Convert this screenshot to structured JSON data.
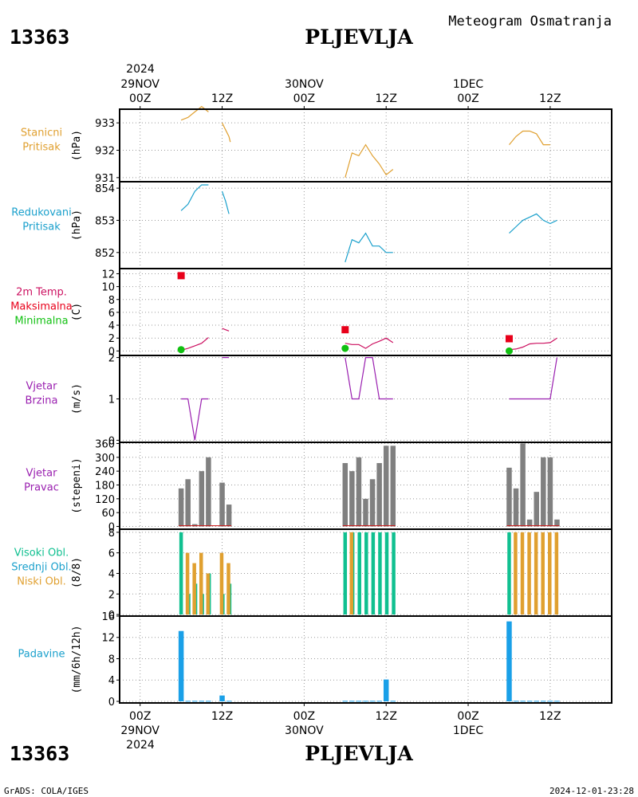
{
  "header": {
    "station_id": "13363",
    "station_name": "PLJEVLJA",
    "subtitle": "Meteogram Osmatranja"
  },
  "footer": {
    "station_id": "13363",
    "station_name": "PLJEVLJA",
    "credit": "GrADS: COLA/IGES",
    "timestamp": "2024-12-01-23:28"
  },
  "time_axis": {
    "year": "2024",
    "ticks": [
      {
        "hour": 0,
        "hour_label": "00Z",
        "date_label": "29NOV"
      },
      {
        "hour": 12,
        "hour_label": "12Z",
        "date_label": ""
      },
      {
        "hour": 24,
        "hour_label": "00Z",
        "date_label": "30NOV"
      },
      {
        "hour": 36,
        "hour_label": "12Z",
        "date_label": ""
      },
      {
        "hour": 48,
        "hour_label": "00Z",
        "date_label": "1DEC"
      },
      {
        "hour": 60,
        "hour_label": "12Z",
        "date_label": ""
      }
    ],
    "range_hours": [
      -3,
      69
    ]
  },
  "chart_data": [
    {
      "id": "station-pressure",
      "type": "line",
      "labels": [
        "Stanicni",
        "Pritisak"
      ],
      "label_color": "#e0a030",
      "ylabel": "(hPa)",
      "ylim": [
        930.85,
        933.5
      ],
      "yticks": [
        931,
        932,
        933
      ],
      "series": [
        {
          "color": "#e0a030",
          "segments": [
            [
              [
                6,
                933.1
              ],
              [
                7,
                933.2
              ],
              [
                8,
                933.4
              ],
              [
                9,
                933.6
              ],
              [
                10,
                933.4
              ]
            ],
            [
              [
                12,
                933.0
              ],
              [
                13,
                932.5
              ],
              [
                13.2,
                932.3
              ]
            ],
            [
              [
                30,
                931.0
              ],
              [
                31,
                931.9
              ],
              [
                32,
                931.8
              ],
              [
                33,
                932.2
              ],
              [
                34,
                931.8
              ],
              [
                35,
                931.5
              ],
              [
                36,
                931.1
              ],
              [
                37,
                931.3
              ]
            ],
            [
              [
                54,
                932.2
              ],
              [
                55,
                932.5
              ],
              [
                56,
                932.7
              ],
              [
                57,
                932.7
              ],
              [
                58,
                932.6
              ],
              [
                59,
                932.2
              ],
              [
                60,
                932.2
              ]
            ]
          ]
        }
      ]
    },
    {
      "id": "reduced-pressure",
      "type": "line",
      "labels": [
        "Redukovani",
        "Pritisak"
      ],
      "label_color": "#1aa0cc",
      "ylabel": "(hPa)",
      "ylim": [
        851.5,
        854.2
      ],
      "yticks": [
        852,
        853,
        854
      ],
      "series": [
        {
          "color": "#1aa0cc",
          "segments": [
            [
              [
                6,
                853.3
              ],
              [
                7,
                853.5
              ],
              [
                8,
                853.9
              ],
              [
                9,
                854.1
              ],
              [
                10,
                854.1
              ]
            ],
            [
              [
                12,
                853.9
              ],
              [
                12.5,
                853.6
              ],
              [
                13,
                853.2
              ]
            ],
            [
              [
                30,
                851.7
              ],
              [
                31,
                852.4
              ],
              [
                32,
                852.3
              ],
              [
                33,
                852.6
              ],
              [
                34,
                852.2
              ],
              [
                35,
                852.2
              ],
              [
                36,
                852.0
              ],
              [
                37,
                852.0
              ]
            ],
            [
              [
                54,
                852.6
              ],
              [
                55,
                852.8
              ],
              [
                56,
                853.0
              ],
              [
                57,
                853.1
              ],
              [
                58,
                853.2
              ],
              [
                59,
                853.0
              ],
              [
                60,
                852.9
              ],
              [
                61,
                853.0
              ]
            ]
          ]
        }
      ]
    },
    {
      "id": "temperature",
      "type": "line",
      "labels": [
        "2m Temp.",
        "Maksimalna",
        "Minimalna"
      ],
      "label_colors": [
        "#cc1060",
        "#e8001a",
        "#10c010"
      ],
      "ylabel": "(C)",
      "ylim": [
        -0.7,
        12.8
      ],
      "yticks": [
        0,
        2,
        4,
        6,
        8,
        10,
        12
      ],
      "series": [
        {
          "color": "#cc1060",
          "segments": [
            [
              [
                6,
                0.1
              ],
              [
                7,
                0.4
              ],
              [
                8,
                0.8
              ],
              [
                9,
                1.2
              ],
              [
                10,
                2.1
              ]
            ],
            [
              [
                12,
                3.5
              ],
              [
                13,
                3.1
              ]
            ],
            [
              [
                30,
                1.2
              ],
              [
                31,
                1.0
              ],
              [
                32,
                1.0
              ],
              [
                33,
                0.4
              ],
              [
                34,
                1.1
              ],
              [
                35,
                1.5
              ],
              [
                36,
                2.0
              ],
              [
                37,
                1.3
              ]
            ],
            [
              [
                54,
                0.2
              ],
              [
                55,
                0.3
              ],
              [
                56,
                0.6
              ],
              [
                57,
                1.1
              ],
              [
                58,
                1.2
              ],
              [
                59,
                1.2
              ],
              [
                60,
                1.3
              ],
              [
                61,
                2.0
              ]
            ]
          ]
        }
      ],
      "max_markers": [
        [
          6,
          11.7
        ],
        [
          30,
          3.3
        ],
        [
          54,
          1.9
        ]
      ],
      "min_markers": [
        [
          6,
          0.2
        ],
        [
          30,
          0.4
        ],
        [
          54,
          0.0
        ]
      ]
    },
    {
      "id": "wind-speed",
      "type": "line",
      "labels": [
        "Vjetar",
        "Brzina"
      ],
      "label_color": "#9a20b0",
      "ylabel": "(m/s)",
      "ylim": [
        -0.05,
        2.05
      ],
      "yticks": [
        0,
        1,
        2
      ],
      "series": [
        {
          "color": "#9a20b0",
          "segments": [
            [
              [
                6,
                1
              ],
              [
                7,
                1
              ],
              [
                8,
                0
              ],
              [
                9,
                1
              ],
              [
                10,
                1
              ]
            ],
            [
              [
                12,
                2
              ],
              [
                13,
                2
              ]
            ],
            [
              [
                30,
                2
              ],
              [
                31,
                1
              ],
              [
                32,
                1
              ],
              [
                33,
                2
              ],
              [
                34,
                2
              ],
              [
                35,
                1
              ],
              [
                36,
                1
              ],
              [
                37,
                1
              ]
            ],
            [
              [
                54,
                1
              ],
              [
                55,
                1
              ],
              [
                56,
                1
              ],
              [
                57,
                1
              ],
              [
                58,
                1
              ],
              [
                59,
                1
              ],
              [
                60,
                1
              ],
              [
                61,
                2
              ]
            ]
          ]
        }
      ]
    },
    {
      "id": "wind-direction",
      "type": "bar",
      "labels": [
        "Vjetar",
        "Pravac"
      ],
      "label_color": "#9a20b0",
      "ylabel": "(stepeni)",
      "ylim": [
        -12,
        365
      ],
      "yticks": [
        0,
        60,
        120,
        180,
        240,
        300,
        360
      ],
      "bar_color": "#808080",
      "x": [
        6,
        7,
        8,
        9,
        10,
        12,
        13,
        30,
        31,
        32,
        33,
        34,
        35,
        36,
        37,
        54,
        55,
        56,
        57,
        58,
        59,
        60,
        61
      ],
      "values": [
        165,
        205,
        10,
        240,
        300,
        190,
        95,
        275,
        240,
        300,
        120,
        205,
        275,
        350,
        350,
        255,
        165,
        360,
        30,
        150,
        300,
        300,
        30
      ]
    },
    {
      "id": "clouds",
      "type": "bar",
      "labels": [
        "Visoki Obl.",
        "Srednji Obl.",
        "Niski Obl."
      ],
      "label_colors": [
        "#10c090",
        "#1aa0cc",
        "#e0a030"
      ],
      "ylabel": "(8/8)",
      "ylim": [
        -0.15,
        8.3
      ],
      "yticks": [
        0,
        2,
        4,
        6,
        8
      ],
      "series": [
        {
          "name": "Visoki Obl.",
          "color": "#10c090",
          "points": [
            [
              6,
              8
            ],
            [
              30,
              8
            ],
            [
              54,
              8
            ]
          ]
        },
        {
          "name": "Srednji Obl.",
          "color": "#10c090",
          "points": [
            [
              7,
              2
            ],
            [
              8,
              3
            ],
            [
              9,
              2
            ],
            [
              10,
              4
            ],
            [
              12,
              2
            ],
            [
              13,
              3
            ],
            [
              31,
              8
            ],
            [
              32,
              8
            ],
            [
              33,
              8
            ],
            [
              34,
              8
            ],
            [
              35,
              8
            ],
            [
              36,
              8
            ],
            [
              37,
              8
            ]
          ]
        },
        {
          "name": "Niski Obl.",
          "color": "#e0a030",
          "points": [
            [
              7,
              6
            ],
            [
              8,
              5
            ],
            [
              9,
              6
            ],
            [
              10,
              4
            ],
            [
              12,
              6
            ],
            [
              13,
              5
            ],
            [
              31,
              8
            ],
            [
              55,
              8
            ],
            [
              56,
              8
            ],
            [
              57,
              8
            ],
            [
              58,
              8
            ],
            [
              59,
              8
            ],
            [
              60,
              8
            ],
            [
              61,
              8
            ]
          ]
        }
      ]
    },
    {
      "id": "precipitation",
      "type": "bar",
      "labels": [
        "Padavine"
      ],
      "label_color": "#1aa0cc",
      "ylabel": "(mm/6h/12h)",
      "ylim": [
        -0.3,
        16
      ],
      "yticks": [
        0,
        4,
        8,
        12,
        16
      ],
      "bar_color": "#1aa0e8",
      "x": [
        6,
        7,
        8,
        9,
        10,
        12,
        13,
        30,
        31,
        32,
        33,
        34,
        35,
        36,
        37,
        54,
        55,
        56,
        57,
        58,
        59,
        60,
        61
      ],
      "values": [
        13.2,
        0.1,
        0.1,
        0.1,
        0.1,
        1.1,
        0.1,
        0.1,
        0.1,
        0.1,
        0.1,
        0.1,
        0.1,
        4.1,
        0.1,
        15.0,
        0.1,
        0.1,
        0.1,
        0.1,
        0.1,
        0.1,
        0.1
      ]
    }
  ]
}
